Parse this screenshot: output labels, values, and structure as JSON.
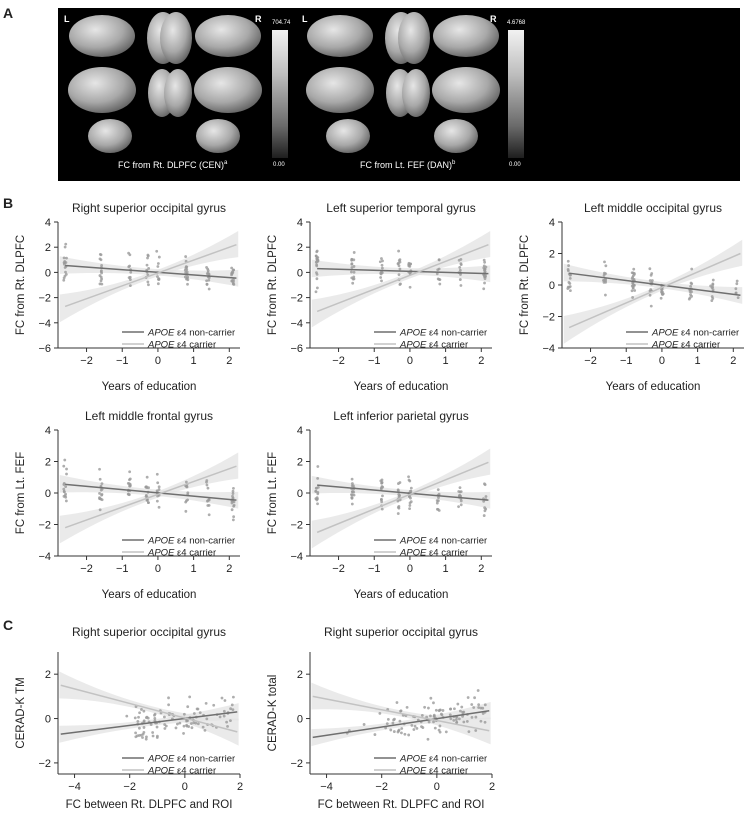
{
  "panel_labels": {
    "a": "A",
    "b": "B",
    "c": "C"
  },
  "brain_maps": [
    {
      "side_left": "L",
      "side_right": "R",
      "caption": "FC from Rt. DLPFC (CEN)",
      "caption_sup": "a",
      "cbar_max": "704.74",
      "cbar_min": "0.00"
    },
    {
      "side_left": "L",
      "side_right": "R",
      "caption": "FC from Lt. FEF (DAN)",
      "caption_sup": "b",
      "cbar_max": "4.6768",
      "cbar_min": "0.00"
    }
  ],
  "colors": {
    "non_carrier": "#6f6f6f",
    "carrier": "#c2c2c2",
    "band": "#e3e3e3",
    "points": "#9a9a9a"
  },
  "legend": {
    "italic": "APOE",
    "non_carrier": " ε4 non-carrier",
    "carrier": " ε4 carrier"
  },
  "chart_data": [
    {
      "type": "scatter",
      "title": "Right superior occipital gyrus",
      "xlabel": "Years of education",
      "ylabel": "FC from Rt. DLPFC",
      "xlim": [
        -2.8,
        2.3
      ],
      "ylim": [
        -6,
        4
      ],
      "xticks": [
        -2,
        -1,
        0,
        1,
        2
      ],
      "yticks": [
        -6,
        -4,
        -2,
        0,
        2,
        4
      ],
      "series": [
        {
          "name": "APOE ε4 non-carrier",
          "fit": [
            [
              -2.6,
              0.55
            ],
            [
              2.2,
              -0.45
            ]
          ]
        },
        {
          "name": "APOE ε4 carrier",
          "fit": [
            [
              -2.6,
              -2.7
            ],
            [
              2.2,
              2.2
            ]
          ]
        }
      ]
    },
    {
      "type": "scatter",
      "title": "Left superior temporal gyrus",
      "xlabel": "Years of education",
      "ylabel": "FC from Rt. DLPFC",
      "xlim": [
        -2.8,
        2.3
      ],
      "ylim": [
        -6,
        4
      ],
      "xticks": [
        -2,
        -1,
        0,
        1,
        2
      ],
      "yticks": [
        -6,
        -4,
        -2,
        0,
        2,
        4
      ],
      "series": [
        {
          "name": "APOE ε4 non-carrier",
          "fit": [
            [
              -2.6,
              0.3
            ],
            [
              2.2,
              -0.1
            ]
          ]
        },
        {
          "name": "APOE ε4 carrier",
          "fit": [
            [
              -2.6,
              -3.1
            ],
            [
              2.2,
              2.2
            ]
          ]
        }
      ]
    },
    {
      "type": "scatter",
      "title": "Left middle occipital gyrus",
      "xlabel": "Years of education",
      "ylabel": "FC from Rt. DLPFC",
      "xlim": [
        -2.8,
        2.3
      ],
      "ylim": [
        -4,
        4
      ],
      "xticks": [
        -2,
        -1,
        0,
        1,
        2
      ],
      "yticks": [
        -4,
        -2,
        0,
        2,
        4
      ],
      "series": [
        {
          "name": "APOE ε4 non-carrier",
          "fit": [
            [
              -2.6,
              0.75
            ],
            [
              2.2,
              -0.65
            ]
          ]
        },
        {
          "name": "APOE ε4 carrier",
          "fit": [
            [
              -2.6,
              -2.7
            ],
            [
              2.2,
              2.0
            ]
          ]
        }
      ]
    },
    {
      "type": "scatter",
      "title": "Left middle frontal gyrus",
      "xlabel": "Years of education",
      "ylabel": "FC from Lt. FEF",
      "xlim": [
        -2.8,
        2.3
      ],
      "ylim": [
        -4,
        4
      ],
      "xticks": [
        -2,
        -1,
        0,
        1,
        2
      ],
      "yticks": [
        -4,
        -2,
        0,
        2,
        4
      ],
      "series": [
        {
          "name": "APOE ε4 non-carrier",
          "fit": [
            [
              -2.6,
              0.55
            ],
            [
              2.2,
              -0.45
            ]
          ]
        },
        {
          "name": "APOE ε4 carrier",
          "fit": [
            [
              -2.6,
              -2.2
            ],
            [
              2.2,
              1.7
            ]
          ]
        }
      ]
    },
    {
      "type": "scatter",
      "title": "Left inferior parietal gyrus",
      "xlabel": "Years of education",
      "ylabel": "FC from Lt. FEF",
      "xlim": [
        -2.8,
        2.3
      ],
      "ylim": [
        -4,
        4
      ],
      "xticks": [
        -2,
        -1,
        0,
        1,
        2
      ],
      "yticks": [
        -4,
        -2,
        0,
        2,
        4
      ],
      "series": [
        {
          "name": "APOE ε4 non-carrier",
          "fit": [
            [
              -2.6,
              0.5
            ],
            [
              2.2,
              -0.45
            ]
          ]
        },
        {
          "name": "APOE ε4 carrier",
          "fit": [
            [
              -2.6,
              -2.5
            ],
            [
              2.2,
              1.95
            ]
          ]
        }
      ]
    },
    {
      "type": "scatter",
      "title": "Right superior occipital gyrus",
      "xlabel": "FC between Rt. DLPFC and ROI",
      "ylabel": "CERAD-K TM",
      "xlim": [
        -4.6,
        2.0
      ],
      "ylim": [
        -2.5,
        3.0
      ],
      "xticks": [
        -4,
        -2,
        0,
        2
      ],
      "yticks": [
        -2,
        0,
        2
      ],
      "series": [
        {
          "name": "APOE ε4 non-carrier",
          "fit": [
            [
              -4.5,
              -0.7
            ],
            [
              1.9,
              0.3
            ]
          ]
        },
        {
          "name": "APOE ε4 carrier",
          "fit": [
            [
              -4.5,
              1.5
            ],
            [
              1.9,
              -0.6
            ]
          ]
        }
      ]
    },
    {
      "type": "scatter",
      "title": "Right superior occipital gyrus",
      "xlabel": "FC between Rt. DLPFC and ROI",
      "ylabel": "CERAD-K total",
      "xlim": [
        -4.6,
        2.0
      ],
      "ylim": [
        -2.5,
        3.0
      ],
      "xticks": [
        -4,
        -2,
        0,
        2
      ],
      "yticks": [
        -2,
        0,
        2
      ],
      "series": [
        {
          "name": "APOE ε4 non-carrier",
          "fit": [
            [
              -4.5,
              -0.85
            ],
            [
              1.9,
              0.35
            ]
          ]
        },
        {
          "name": "APOE ε4 carrier",
          "fit": [
            [
              -4.5,
              1.0
            ],
            [
              1.9,
              -0.55
            ]
          ]
        }
      ]
    }
  ]
}
